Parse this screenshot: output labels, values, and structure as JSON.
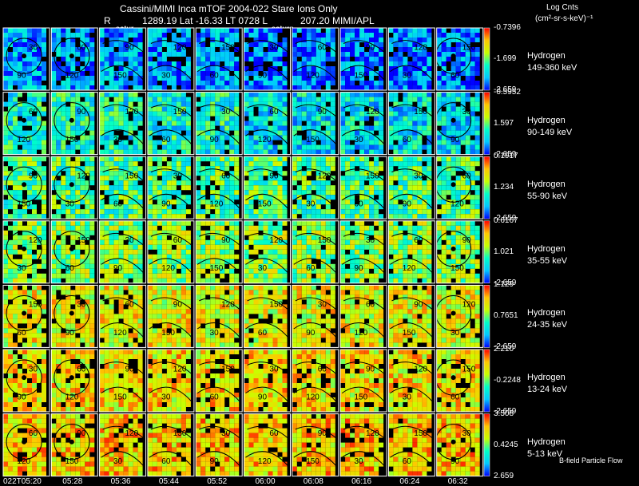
{
  "title": "Cassini/MIMI Inca mTOF  2004-022   Stare   Ions Only",
  "subtitle_parts": [
    "R",
    "1289.19 Lat -16.33 LT 0728 L",
    "207.20  MIMI/APL"
  ],
  "units_label": "Log Cnts",
  "units_formula": "(cm²-sr-s-keV)⁻¹",
  "overlay_tags": [
    "satur",
    "saturn"
  ],
  "footnote": "B-field Particle Flow",
  "chart_data": {
    "type": "heatmap",
    "title": "Cassini/MIMI Inca mTOF  2004-022   Stare   Ions Only",
    "time_labels": [
      "022T05:20",
      "05:28",
      "05:36",
      "05:44",
      "05:52",
      "06:00",
      "06:08",
      "06:16",
      "06:24",
      "06:32"
    ],
    "colorbar_label": "Log Cnts (cm²-sr-s-keV)⁻¹",
    "colormap": [
      "#0000ff",
      "#00c8ff",
      "#00ffc8",
      "#c8ff00",
      "#ffc800",
      "#ff0000"
    ],
    "contour_labels": [
      "30",
      "60",
      "90",
      "120",
      "150"
    ],
    "rows": [
      {
        "species": "Hydrogen",
        "energy": "149-360 keV",
        "cbar_max": "-0.7396",
        "cbar_mid": "-1.699",
        "cbar_min": "-2.659",
        "level": 0.18
      },
      {
        "species": "Hydrogen",
        "energy": "90-149 keV",
        "cbar_max": "-0.5952",
        "cbar_mid": "1.597",
        "cbar_min": "-2.659",
        "level": 0.35
      },
      {
        "species": "Hydrogen",
        "energy": "55-90 keV",
        "cbar_max": "0.1917",
        "cbar_mid": "1.234",
        "cbar_min": "-2.659",
        "level": 0.45
      },
      {
        "species": "Hydrogen",
        "energy": "35-55 keV",
        "cbar_max": "0.6167",
        "cbar_mid": "1.021",
        "cbar_min": "-2.659",
        "level": 0.55
      },
      {
        "species": "Hydrogen",
        "energy": "24-35 keV",
        "cbar_max": "1.129",
        "cbar_mid": "0.7651",
        "cbar_min": "-2.659",
        "level": 0.68
      },
      {
        "species": "Hydrogen",
        "energy": "13-24 keV",
        "cbar_max": "2.210",
        "cbar_mid": "-0.2248",
        "cbar_min": "-2.659",
        "level": 0.72
      },
      {
        "species": "Hydrogen",
        "energy": "5-13 keV",
        "cbar_max": "3.508",
        "cbar_mid": "0.4245",
        "cbar_min": "2.659",
        "level": 0.75
      }
    ]
  }
}
